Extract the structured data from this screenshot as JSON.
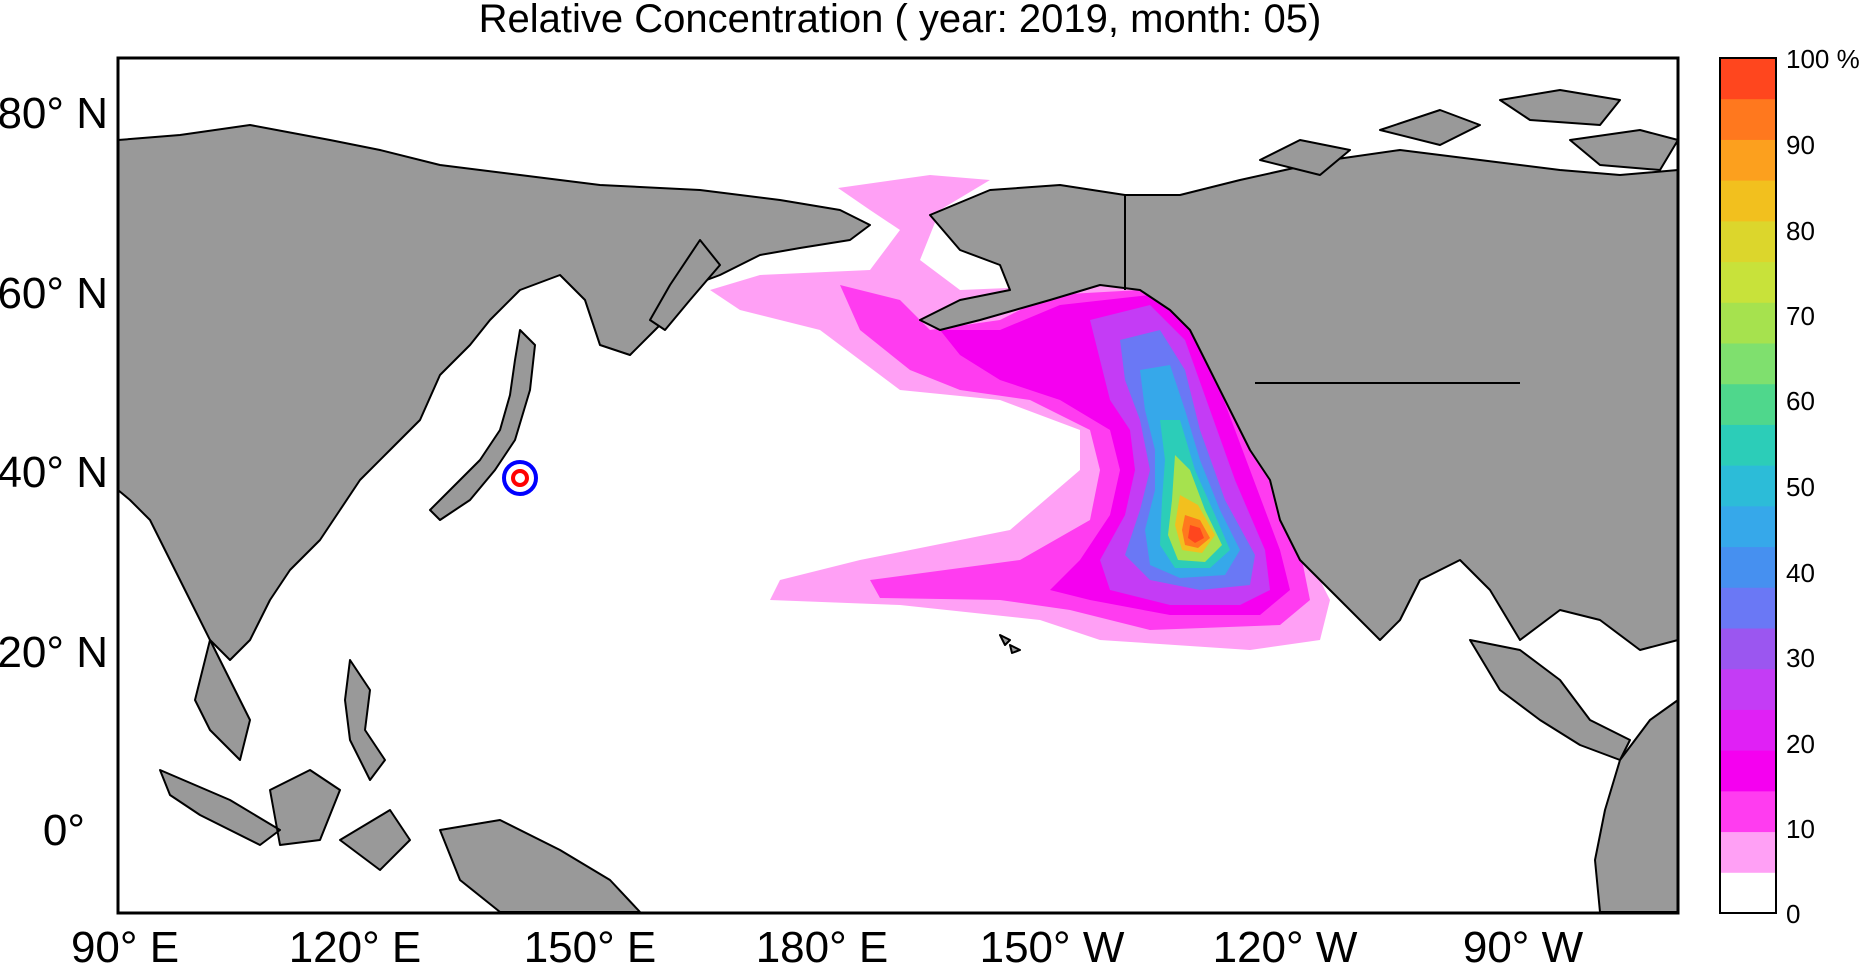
{
  "title": "Relative Concentration ( year: 2019, month: 05)",
  "map": {
    "lat_labels": [
      "80° N",
      "60° N",
      "40° N",
      "20° N",
      "0°"
    ],
    "lon_labels": [
      "90° E",
      "120° E",
      "150° E",
      "180° E",
      "150° W",
      "120° W",
      "90° W"
    ],
    "land_color": "#999999",
    "ocean_color": "#ffffff",
    "source_marker": {
      "outer_color": "#0000ff",
      "inner_color": "#ff0000"
    }
  },
  "colorbar": {
    "unit": "%",
    "tick_labels": [
      "100 %",
      "90",
      "80",
      "70",
      "60",
      "50",
      "40",
      "30",
      "20",
      "10",
      "0"
    ],
    "colors": [
      "#ffffff",
      "#ffa0f5",
      "#ff3cf0",
      "#f500f0",
      "#e020f5",
      "#c43cf5",
      "#9b56f0",
      "#6a78f5",
      "#4690f0",
      "#36a8ea",
      "#2cbcd8",
      "#2ccdb8",
      "#4fd78c",
      "#7fe06e",
      "#a6e24e",
      "#c8e23a",
      "#dcd62c",
      "#f2c01e",
      "#fca01e",
      "#ff781e",
      "#ff461e"
    ]
  }
}
